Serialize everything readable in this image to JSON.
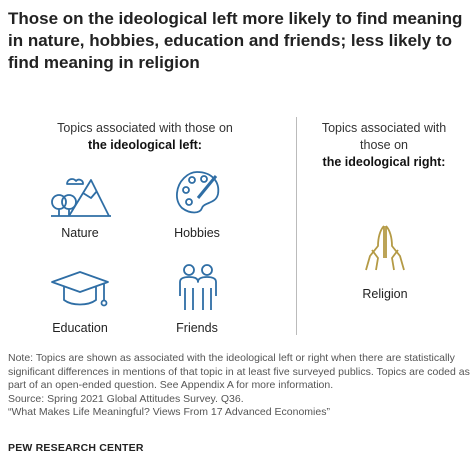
{
  "title": "Those on the ideological left more likely to find meaning in nature, hobbies, education and friends; less likely to find meaning in religion",
  "left_panel": {
    "heading": "Topics associated with those on",
    "heading_bold": "the ideological left:",
    "items": [
      "Nature",
      "Hobbies",
      "Education",
      "Friends"
    ]
  },
  "right_panel": {
    "heading": "Topics associated with those on",
    "heading_bold": "the ideological right:",
    "items": [
      "Religion"
    ]
  },
  "note": "Note: Topics are shown as associated with the ideological left or right when there are statistically significant differences in mentions of that topic in at least five surveyed publics. Topics are coded as part of an open-ended question. See Appendix A for more information.",
  "source": "Source: Spring 2021 Global Attitudes Survey. Q36.",
  "report": "“What Makes Life Meaningful? Views From 17 Advanced Economies”",
  "brand": "PEW RESEARCH CENTER"
}
